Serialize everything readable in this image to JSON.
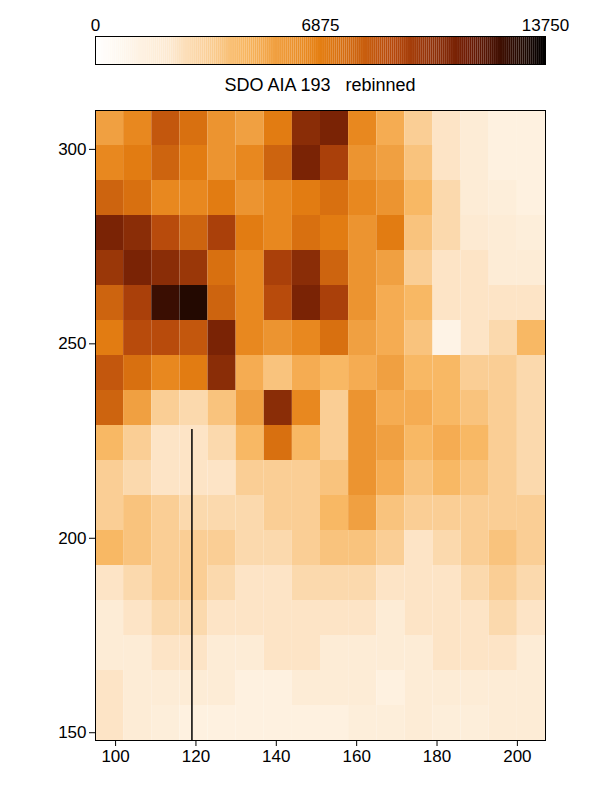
{
  "chart_data": {
    "type": "heatmap",
    "title": "SDO AIA 193   rebinned",
    "xlim": [
      95,
      207
    ],
    "xticks": [
      100,
      120,
      140,
      160,
      180,
      200
    ],
    "ylim": [
      148,
      310
    ],
    "yticks": [
      150,
      200,
      250,
      300
    ],
    "colorbar": {
      "range": [
        0,
        13750
      ],
      "ticks": [
        0,
        6875,
        13750
      ]
    },
    "slit": {
      "x": 119,
      "y": [
        148,
        228
      ]
    },
    "x_bins": [
      95,
      102,
      109,
      116,
      123,
      130,
      137,
      144,
      151,
      158,
      165,
      172,
      179,
      186,
      193,
      200,
      207
    ],
    "y_bins": [
      310,
      301,
      292,
      283,
      274,
      265,
      256,
      247,
      238,
      229,
      220,
      211,
      202,
      193,
      184,
      175,
      166,
      157,
      148
    ],
    "cells": [
      [
        5500,
        6500,
        8500,
        7500,
        6000,
        5500,
        7000,
        10500,
        11000,
        6500,
        5000,
        3500,
        2500,
        2000,
        1500,
        1500
      ],
      [
        6500,
        7000,
        8000,
        7000,
        6000,
        6500,
        8000,
        11000,
        9500,
        6000,
        5500,
        4000,
        2500,
        2000,
        1500,
        1500
      ],
      [
        8000,
        7500,
        6500,
        6500,
        7000,
        6000,
        6500,
        7000,
        7500,
        6500,
        6000,
        4500,
        3000,
        2000,
        1800,
        1500
      ],
      [
        11000,
        10500,
        9000,
        8000,
        9500,
        7000,
        6500,
        7500,
        7000,
        6000,
        7000,
        4000,
        3000,
        2200,
        2000,
        1800
      ],
      [
        10000,
        11000,
        10500,
        10000,
        7500,
        6500,
        9500,
        10500,
        8000,
        6000,
        5500,
        3500,
        2500,
        2500,
        2000,
        2000
      ],
      [
        8000,
        9500,
        12500,
        13000,
        8000,
        6500,
        9000,
        11000,
        9500,
        6000,
        5000,
        4500,
        2500,
        2500,
        2500,
        2500
      ],
      [
        7000,
        9000,
        9000,
        8500,
        11000,
        6500,
        6000,
        6500,
        7500,
        5500,
        5000,
        4000,
        1200,
        2500,
        3000,
        4500
      ],
      [
        8500,
        7500,
        6500,
        7000,
        10500,
        5000,
        4000,
        5000,
        4500,
        5000,
        5500,
        4500,
        4500,
        3500,
        3500,
        3000
      ],
      [
        8000,
        5500,
        3500,
        3000,
        4000,
        5500,
        10500,
        6500,
        3500,
        6000,
        5000,
        5000,
        4500,
        4000,
        3500,
        3000
      ],
      [
        4500,
        3500,
        2500,
        2500,
        3000,
        4500,
        7500,
        4500,
        3500,
        6000,
        5500,
        4500,
        5000,
        4500,
        3500,
        3000
      ],
      [
        3500,
        3000,
        2500,
        2500,
        2500,
        3500,
        3500,
        3500,
        4000,
        6000,
        5000,
        4000,
        4500,
        4000,
        3500,
        3000
      ],
      [
        3500,
        4000,
        3500,
        3000,
        3000,
        3000,
        3500,
        3500,
        4500,
        5500,
        4000,
        3500,
        3500,
        3500,
        3500,
        3500
      ],
      [
        4500,
        4000,
        3500,
        3500,
        3500,
        3000,
        3000,
        3500,
        4000,
        4000,
        3500,
        2500,
        3000,
        3500,
        4000,
        3500
      ],
      [
        2500,
        3000,
        3500,
        3500,
        3000,
        2500,
        2500,
        3000,
        3000,
        3000,
        2500,
        2500,
        2500,
        3000,
        3500,
        3000
      ],
      [
        2000,
        2500,
        3000,
        3000,
        2500,
        2500,
        2500,
        2500,
        2500,
        2500,
        2000,
        2500,
        2500,
        2500,
        3000,
        2500
      ],
      [
        2000,
        2000,
        2500,
        2500,
        2000,
        2000,
        2500,
        2500,
        2000,
        2000,
        2000,
        2000,
        2500,
        2500,
        2500,
        2000
      ],
      [
        2500,
        2000,
        2000,
        2000,
        2000,
        1500,
        1500,
        2000,
        2000,
        2000,
        1500,
        2000,
        2000,
        2000,
        2000,
        2000
      ],
      [
        2500,
        2000,
        1800,
        1500,
        1500,
        1500,
        1500,
        1500,
        1500,
        1800,
        1800,
        2000,
        1800,
        1800,
        2000,
        2000
      ]
    ]
  }
}
